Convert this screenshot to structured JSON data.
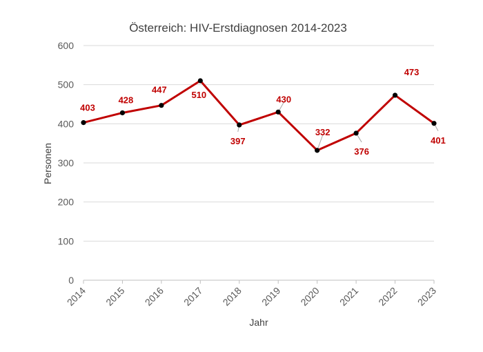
{
  "chart_data": {
    "type": "line",
    "title": "Österreich: HIV-Erstdiagnosen 2014-2023",
    "xlabel": "Jahr",
    "ylabel": "Personen",
    "categories": [
      "2014",
      "2015",
      "2016",
      "2017",
      "2018",
      "2019",
      "2020",
      "2021",
      "2022",
      "2023"
    ],
    "series": [
      {
        "values": [
          403,
          428,
          447,
          510,
          397,
          430,
          332,
          376,
          473,
          401
        ],
        "color": "#c00000",
        "marker_color": "#000000"
      }
    ],
    "data_labels": [
      "403",
      "428",
      "447",
      "510",
      "397",
      "430",
      "332",
      "376",
      "473",
      "401"
    ],
    "ylim": [
      0,
      600
    ],
    "yticks": [
      0,
      100,
      200,
      300,
      400,
      500,
      600
    ],
    "grid": true,
    "legend": "none",
    "label_color": "#c00000"
  }
}
